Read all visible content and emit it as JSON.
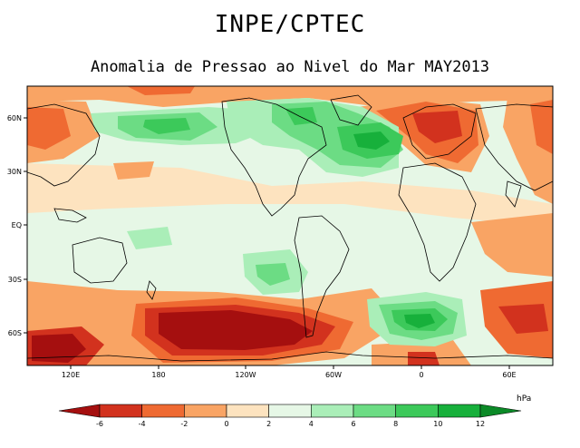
{
  "header": {
    "institution": "INPE/CPTEC",
    "subtitle": "Anomalia de Pressao ao Nivel do Mar MAY2013"
  },
  "map": {
    "lat_labels": [
      "60N",
      "30N",
      "EQ",
      "30S",
      "60S"
    ],
    "lon_labels": [
      "120E",
      "180",
      "120W",
      "60W",
      "0",
      "60E"
    ]
  },
  "legend": {
    "unit": "hPa",
    "ticks": [
      "-6",
      "-4",
      "-2",
      "0",
      "2",
      "4",
      "6",
      "8",
      "10",
      "12"
    ],
    "colors": [
      "#a50f0f",
      "#d2321e",
      "#ef6a32",
      "#f9a464",
      "#fde3bf",
      "#e6f7e6",
      "#aaeeb8",
      "#6cdc84",
      "#3cc95a",
      "#17b03b",
      "#0b8a27"
    ]
  }
}
